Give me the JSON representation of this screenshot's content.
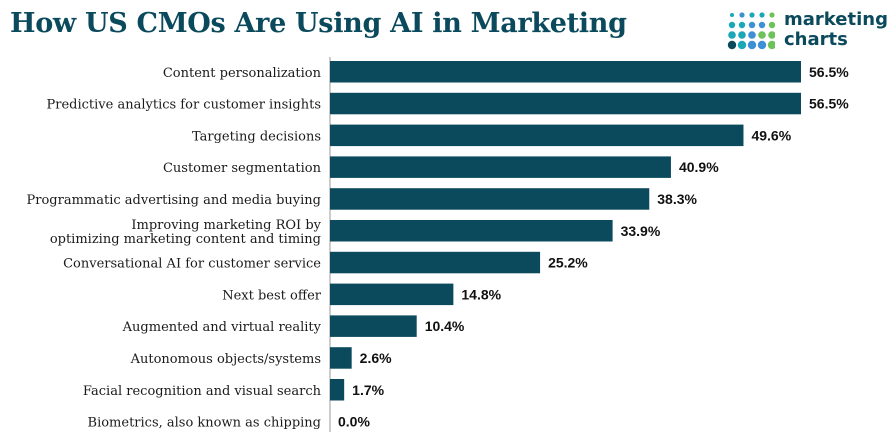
{
  "header": {
    "title": "How US CMOs Are Using AI in Marketing"
  },
  "logo": {
    "line1": "marketing",
    "line2": "charts",
    "dot_colors": [
      "#1aa7b8",
      "#3d8fd6",
      "#6dc35a",
      "#0b4a5c"
    ]
  },
  "chart_data": {
    "type": "bar",
    "orientation": "horizontal",
    "categories": [
      "Content personalization",
      "Predictive analytics for customer insights",
      "Targeting decisions",
      "Customer segmentation",
      "Programmatic advertising and media buying",
      "Improving marketing ROI by optimizing marketing content and timing",
      "Conversational AI for customer service",
      "Next best offer",
      "Augmented and virtual reality",
      "Autonomous objects/systems",
      "Facial recognition and visual search",
      "Biometrics, also known as chipping"
    ],
    "category_lines": [
      [
        "Content personalization"
      ],
      [
        "Predictive analytics for customer insights"
      ],
      [
        "Targeting decisions"
      ],
      [
        "Customer segmentation"
      ],
      [
        "Programmatic advertising and media buying"
      ],
      [
        "Improving marketing ROI by",
        "optimizing marketing content and timing"
      ],
      [
        "Conversational AI for customer service"
      ],
      [
        "Next best offer"
      ],
      [
        "Augmented and virtual reality"
      ],
      [
        "Autonomous objects/systems"
      ],
      [
        "Facial recognition and visual search"
      ],
      [
        "Biometrics, also known as chipping"
      ]
    ],
    "values": [
      56.5,
      56.5,
      49.6,
      40.9,
      38.3,
      33.9,
      25.2,
      14.8,
      10.4,
      2.6,
      1.7,
      0.0
    ],
    "value_labels": [
      "56.5%",
      "56.5%",
      "49.6%",
      "40.9%",
      "38.3%",
      "33.9%",
      "25.2%",
      "14.8%",
      "10.4%",
      "2.6%",
      "1.7%",
      "0.0%"
    ],
    "xlim": [
      0,
      56.5
    ],
    "bar_color": "#0b4a5c",
    "grid": false,
    "legend": "none"
  }
}
